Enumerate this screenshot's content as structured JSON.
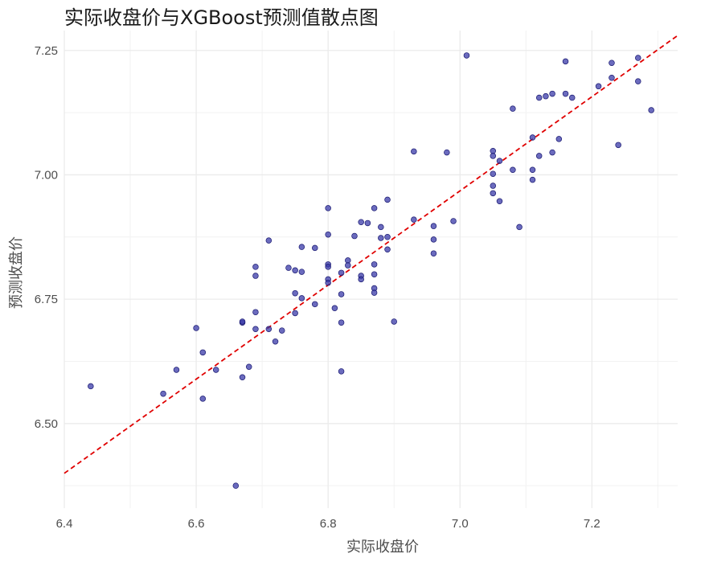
{
  "chart_data": {
    "type": "scatter",
    "title": "实际收盘价与XGBoost预测值散点图",
    "xlabel": "实际收盘价",
    "ylabel": "预测收盘价",
    "xlim": [
      6.4,
      7.33
    ],
    "ylim": [
      6.33,
      7.29
    ],
    "x_ticks": [
      "6.4",
      "6.6",
      "6.8",
      "7.0",
      "7.2"
    ],
    "y_ticks": [
      "6.50",
      "6.75",
      "7.00",
      "7.25"
    ],
    "grid": true,
    "colors": {
      "points": "#3a3aa8",
      "point_stroke": "#191970",
      "reference_line": "#e00000",
      "grid": "#ebebeb"
    },
    "reference_line": {
      "style": "dashed",
      "x": [
        6.4,
        7.33
      ],
      "y": [
        6.4,
        7.28
      ]
    },
    "points": [
      [
        6.44,
        6.575
      ],
      [
        6.55,
        6.56
      ],
      [
        6.57,
        6.608
      ],
      [
        6.6,
        6.692
      ],
      [
        6.61,
        6.643
      ],
      [
        6.61,
        6.55
      ],
      [
        6.63,
        6.608
      ],
      [
        6.66,
        6.375
      ],
      [
        6.67,
        6.703
      ],
      [
        6.67,
        6.705
      ],
      [
        6.67,
        6.593
      ],
      [
        6.68,
        6.614
      ],
      [
        6.69,
        6.815
      ],
      [
        6.69,
        6.797
      ],
      [
        6.69,
        6.724
      ],
      [
        6.69,
        6.69
      ],
      [
        6.71,
        6.868
      ],
      [
        6.71,
        6.69
      ],
      [
        6.72,
        6.665
      ],
      [
        6.73,
        6.687
      ],
      [
        6.74,
        6.813
      ],
      [
        6.75,
        6.808
      ],
      [
        6.75,
        6.762
      ],
      [
        6.75,
        6.722
      ],
      [
        6.76,
        6.855
      ],
      [
        6.76,
        6.805
      ],
      [
        6.76,
        6.752
      ],
      [
        6.78,
        6.853
      ],
      [
        6.78,
        6.74
      ],
      [
        6.8,
        6.933
      ],
      [
        6.8,
        6.88
      ],
      [
        6.8,
        6.82
      ],
      [
        6.8,
        6.815
      ],
      [
        6.8,
        6.79
      ],
      [
        6.8,
        6.783
      ],
      [
        6.81,
        6.732
      ],
      [
        6.82,
        6.803
      ],
      [
        6.82,
        6.76
      ],
      [
        6.82,
        6.703
      ],
      [
        6.82,
        6.605
      ],
      [
        6.83,
        6.828
      ],
      [
        6.83,
        6.818
      ],
      [
        6.84,
        6.877
      ],
      [
        6.85,
        6.905
      ],
      [
        6.85,
        6.797
      ],
      [
        6.85,
        6.79
      ],
      [
        6.86,
        6.903
      ],
      [
        6.87,
        6.933
      ],
      [
        6.87,
        6.82
      ],
      [
        6.87,
        6.8
      ],
      [
        6.87,
        6.772
      ],
      [
        6.87,
        6.763
      ],
      [
        6.88,
        6.895
      ],
      [
        6.88,
        6.873
      ],
      [
        6.89,
        6.95
      ],
      [
        6.89,
        6.875
      ],
      [
        6.89,
        6.85
      ],
      [
        6.9,
        6.705
      ],
      [
        6.93,
        7.047
      ],
      [
        6.93,
        6.91
      ],
      [
        6.96,
        6.897
      ],
      [
        6.96,
        6.87
      ],
      [
        6.96,
        6.842
      ],
      [
        6.98,
        7.045
      ],
      [
        6.99,
        6.907
      ],
      [
        7.01,
        7.24
      ],
      [
        7.05,
        7.048
      ],
      [
        7.05,
        7.038
      ],
      [
        7.05,
        7.002
      ],
      [
        7.05,
        6.978
      ],
      [
        7.05,
        6.963
      ],
      [
        7.06,
        7.028
      ],
      [
        7.06,
        6.947
      ],
      [
        7.08,
        7.133
      ],
      [
        7.08,
        7.01
      ],
      [
        7.09,
        6.895
      ],
      [
        7.11,
        7.075
      ],
      [
        7.11,
        7.01
      ],
      [
        7.11,
        6.99
      ],
      [
        7.12,
        7.155
      ],
      [
        7.12,
        7.038
      ],
      [
        7.13,
        7.158
      ],
      [
        7.14,
        7.163
      ],
      [
        7.14,
        7.045
      ],
      [
        7.15,
        7.072
      ],
      [
        7.16,
        7.228
      ],
      [
        7.16,
        7.163
      ],
      [
        7.17,
        7.155
      ],
      [
        7.21,
        7.178
      ],
      [
        7.23,
        7.225
      ],
      [
        7.23,
        7.195
      ],
      [
        7.24,
        7.06
      ],
      [
        7.27,
        7.235
      ],
      [
        7.27,
        7.188
      ],
      [
        7.29,
        7.13
      ]
    ]
  }
}
